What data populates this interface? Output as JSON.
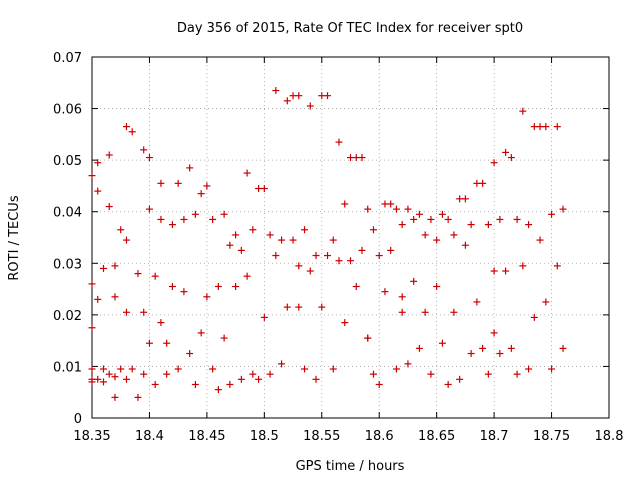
{
  "chart_data": {
    "type": "scatter",
    "title": "Day 356 of 2015, Rate Of TEC Index for receiver spt0",
    "xlabel": "GPS time / hours",
    "ylabel": "ROTI / TECUs",
    "xlim": [
      18.35,
      18.8
    ],
    "ylim": [
      0,
      0.07
    ],
    "xticks": [
      "18.35",
      "18.4",
      "18.45",
      "18.5",
      "18.55",
      "18.6",
      "18.65",
      "18.7",
      "18.75",
      "18.8"
    ],
    "yticks": [
      "0",
      "0.01",
      "0.02",
      "0.03",
      "0.04",
      "0.05",
      "0.06",
      "0.07"
    ],
    "grid": true,
    "marker": "+",
    "color": "#cc0000",
    "series": [
      {
        "name": "ROTI",
        "x": [
          18.35,
          18.35,
          18.35,
          18.35,
          18.35,
          18.35,
          18.355,
          18.355,
          18.355,
          18.355,
          18.36,
          18.36,
          18.36,
          18.365,
          18.365,
          18.365,
          18.37,
          18.37,
          18.37,
          18.37,
          18.375,
          18.375,
          18.38,
          18.38,
          18.38,
          18.38,
          18.385,
          18.385,
          18.39,
          18.39,
          18.395,
          18.395,
          18.395,
          18.4,
          18.4,
          18.4,
          18.405,
          18.405,
          18.41,
          18.41,
          18.415,
          18.415,
          18.42,
          18.42,
          18.425,
          18.425,
          18.43,
          18.43,
          18.435,
          18.435,
          18.44,
          18.44,
          18.445,
          18.445,
          18.45,
          18.45,
          18.455,
          18.455,
          18.46,
          18.46,
          18.465,
          18.465,
          18.47,
          18.47,
          18.475,
          18.475,
          18.48,
          18.48,
          18.485,
          18.485,
          18.49,
          18.49,
          18.495,
          18.495,
          18.5,
          18.5,
          18.505,
          18.505,
          18.51,
          18.51,
          18.515,
          18.515,
          18.52,
          18.52,
          18.525,
          18.525,
          18.53,
          18.53,
          18.535,
          18.535,
          18.54,
          18.54,
          18.545,
          18.545,
          18.55,
          18.55,
          18.555,
          18.555,
          18.56,
          18.56,
          18.565,
          18.565,
          18.57,
          18.57,
          18.575,
          18.575,
          18.58,
          18.58,
          18.585,
          18.585,
          18.59,
          18.59,
          18.595,
          18.595,
          18.6,
          18.6,
          18.605,
          18.605,
          18.61,
          18.61,
          18.615,
          18.615,
          18.62,
          18.62,
          18.625,
          18.625,
          18.63,
          18.63,
          18.635,
          18.635,
          18.64,
          18.64,
          18.645,
          18.645,
          18.65,
          18.65,
          18.655,
          18.655,
          18.66,
          18.66,
          18.665,
          18.665,
          18.67,
          18.67,
          18.675,
          18.675,
          18.68,
          18.68,
          18.685,
          18.685,
          18.69,
          18.69,
          18.695,
          18.695,
          18.7,
          18.7,
          18.705,
          18.705,
          18.71,
          18.71,
          18.715,
          18.715,
          18.72,
          18.72,
          18.725,
          18.725,
          18.73,
          18.73,
          18.735,
          18.735,
          18.74,
          18.74,
          18.745,
          18.745,
          18.75,
          18.75,
          18.755,
          18.755,
          18.76,
          18.76,
          18.53,
          18.62,
          18.7,
          18.41,
          18.59
        ],
        "y": [
          0.047,
          0.026,
          0.0175,
          0.0095,
          0.0075,
          0.007,
          0.0495,
          0.044,
          0.023,
          0.0075,
          0.029,
          0.0095,
          0.007,
          0.051,
          0.041,
          0.0085,
          0.0235,
          0.008,
          0.004,
          0.0295,
          0.0365,
          0.0095,
          0.0565,
          0.0345,
          0.0205,
          0.0075,
          0.0555,
          0.0095,
          0.028,
          0.004,
          0.052,
          0.0085,
          0.0205,
          0.0505,
          0.0405,
          0.0145,
          0.0275,
          0.0065,
          0.0455,
          0.0385,
          0.0145,
          0.0085,
          0.0375,
          0.0255,
          0.0455,
          0.0095,
          0.0385,
          0.0245,
          0.0485,
          0.0125,
          0.0395,
          0.0065,
          0.0435,
          0.0165,
          0.045,
          0.0235,
          0.0385,
          0.0095,
          0.0255,
          0.0055,
          0.0395,
          0.0155,
          0.0335,
          0.0065,
          0.0355,
          0.0255,
          0.0325,
          0.0075,
          0.0475,
          0.0275,
          0.0365,
          0.0085,
          0.0445,
          0.0075,
          0.0445,
          0.0195,
          0.0355,
          0.0085,
          0.0635,
          0.0315,
          0.0345,
          0.0105,
          0.0615,
          0.0215,
          0.0625,
          0.0345,
          0.0625,
          0.0295,
          0.0365,
          0.0095,
          0.0605,
          0.0285,
          0.0315,
          0.0075,
          0.0625,
          0.0215,
          0.0625,
          0.0315,
          0.0345,
          0.0095,
          0.0535,
          0.0305,
          0.0415,
          0.0185,
          0.0505,
          0.0305,
          0.0505,
          0.0255,
          0.0505,
          0.0325,
          0.0405,
          0.0155,
          0.0365,
          0.0085,
          0.0315,
          0.0065,
          0.0415,
          0.0245,
          0.0415,
          0.0325,
          0.0405,
          0.0095,
          0.0375,
          0.0235,
          0.0405,
          0.0105,
          0.0385,
          0.0265,
          0.0395,
          0.0135,
          0.0355,
          0.0205,
          0.0385,
          0.0085,
          0.0345,
          0.0255,
          0.0395,
          0.0145,
          0.0385,
          0.0065,
          0.0355,
          0.0205,
          0.0425,
          0.0075,
          0.0425,
          0.0335,
          0.0375,
          0.0125,
          0.0455,
          0.0225,
          0.0455,
          0.0135,
          0.0375,
          0.0085,
          0.0495,
          0.0285,
          0.0385,
          0.0125,
          0.0515,
          0.0285,
          0.0505,
          0.0135,
          0.0385,
          0.0085,
          0.0595,
          0.0295,
          0.0375,
          0.0095,
          0.0565,
          0.0195,
          0.0565,
          0.0345,
          0.0565,
          0.0225,
          0.0395,
          0.0095,
          0.0565,
          0.0295,
          0.0405,
          0.0135,
          0.0215,
          0.0205,
          0.0165,
          0.0185,
          0.0155
        ]
      }
    ]
  }
}
